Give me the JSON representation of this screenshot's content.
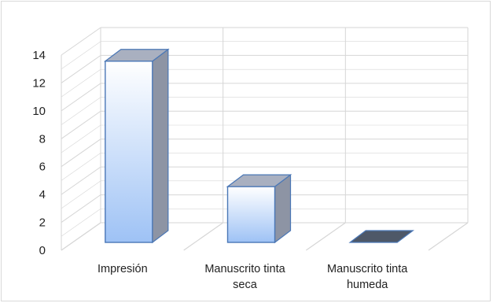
{
  "chart_data": {
    "type": "bar",
    "style": "3d-column",
    "categories": [
      "Impresión",
      "Manuscrito tinta seca",
      "Manuscrito tinta humeda"
    ],
    "category_lines": [
      [
        "Impresión"
      ],
      [
        "Manuscrito tinta",
        "seca"
      ],
      [
        "Manuscrito tinta",
        "humeda"
      ]
    ],
    "values": [
      13,
      4,
      0
    ],
    "ylim": [
      0,
      14
    ],
    "yticks": [
      0,
      2,
      4,
      6,
      8,
      10,
      12,
      14
    ],
    "ytick_labels": [
      "0",
      "2",
      "4",
      "6",
      "8",
      "10",
      "12",
      "14"
    ],
    "grid": true,
    "legend": "none",
    "colors": {
      "bar_front_top": "#ffffff",
      "bar_front_bottom": "#9ec2f5",
      "bar_side": "#8d94a4",
      "bar_top": "#a9b0c0",
      "bar_edge": "#4a77b6",
      "zero_bar": "#4e5868",
      "grid": "#d6d6d6",
      "frame": "#d9d9d9"
    }
  }
}
